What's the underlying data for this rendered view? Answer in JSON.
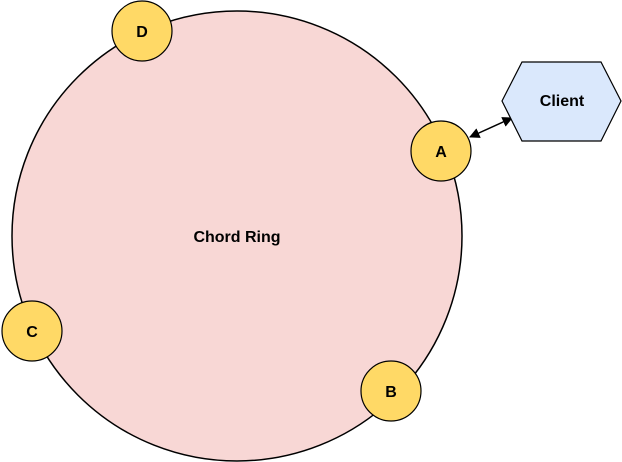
{
  "ring": {
    "label": "Chord Ring",
    "fill": "#f8d7d5",
    "stroke": "#000000"
  },
  "nodes": [
    {
      "id": "A",
      "label": "A"
    },
    {
      "id": "B",
      "label": "B"
    },
    {
      "id": "C",
      "label": "C"
    },
    {
      "id": "D",
      "label": "D"
    }
  ],
  "node_style": {
    "fill": "#ffd966",
    "stroke": "#000000"
  },
  "client": {
    "label": "Client",
    "fill": "#dae8fc",
    "stroke": "#000000"
  },
  "connection": {
    "from": "A",
    "to": "Client",
    "style": "bidirectional-arrow"
  }
}
